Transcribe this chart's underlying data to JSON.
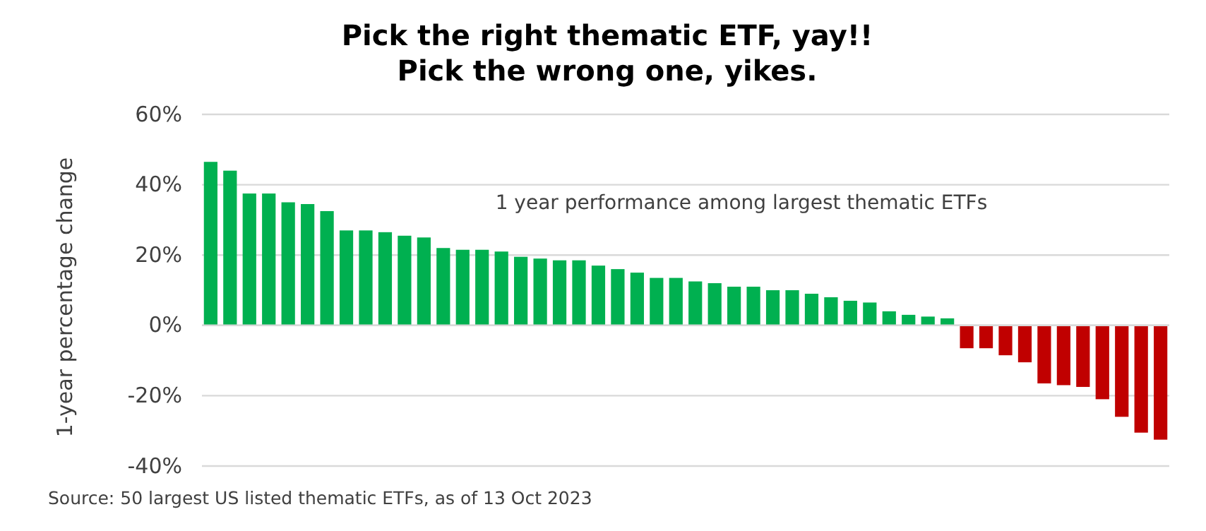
{
  "chart_data": {
    "type": "bar",
    "title": "Pick the right thematic ETF, yay!!\nPick the wrong one, yikes.",
    "ylabel": "1-year percentage change",
    "categories": [
      null,
      null,
      null,
      null,
      null,
      null,
      null,
      null,
      null,
      null,
      null,
      null,
      null,
      null,
      null,
      null,
      null,
      null,
      null,
      null,
      null,
      null,
      null,
      null,
      null,
      null,
      null,
      null,
      null,
      null,
      null,
      null,
      null,
      null,
      null,
      null,
      null,
      null,
      null,
      null,
      null,
      null,
      null,
      null,
      null,
      null,
      null,
      null,
      null,
      null
    ],
    "values": [
      46.5,
      44,
      37.5,
      37.5,
      35,
      34.5,
      32.5,
      27,
      27,
      26.5,
      25.5,
      25,
      22,
      21.5,
      21.5,
      21,
      19.5,
      19,
      18.5,
      18.5,
      17,
      16,
      15,
      13.5,
      13.5,
      12.5,
      12,
      11,
      11,
      10,
      10,
      9,
      8,
      7,
      6.5,
      4,
      3,
      2.5,
      2,
      -6.5,
      -6.5,
      -8.5,
      -10.5,
      -16.5,
      -17,
      -17.5,
      -21,
      -26,
      -30.5,
      -32.5
    ],
    "colors": [
      "#00b050",
      "#00b050",
      "#00b050",
      "#00b050",
      "#00b050",
      "#00b050",
      "#00b050",
      "#00b050",
      "#00b050",
      "#00b050",
      "#00b050",
      "#00b050",
      "#00b050",
      "#00b050",
      "#00b050",
      "#00b050",
      "#00b050",
      "#00b050",
      "#00b050",
      "#00b050",
      "#00b050",
      "#00b050",
      "#00b050",
      "#00b050",
      "#00b050",
      "#00b050",
      "#00b050",
      "#00b050",
      "#00b050",
      "#00b050",
      "#00b050",
      "#00b050",
      "#00b050",
      "#00b050",
      "#00b050",
      "#00b050",
      "#00b050",
      "#00b050",
      "#00b050",
      "#c00000",
      "#c00000",
      "#c00000",
      "#c00000",
      "#c00000",
      "#c00000",
      "#c00000",
      "#c00000",
      "#c00000",
      "#c00000",
      "#c00000"
    ],
    "ylim": [
      -40,
      60
    ],
    "yticks": [
      {
        "value": -40,
        "label": "-40%"
      },
      {
        "value": -20,
        "label": "-20%"
      },
      {
        "value": 0,
        "label": "0%"
      },
      {
        "value": 20,
        "label": "20%"
      },
      {
        "value": 40,
        "label": "40%"
      },
      {
        "value": 60,
        "label": "60%"
      }
    ],
    "grid": "y",
    "annotations": [
      "1 year performance among largest thematic ETFs",
      "Source: 50 largest US listed thematic ETFs, as of 13 Oct 2023"
    ]
  }
}
